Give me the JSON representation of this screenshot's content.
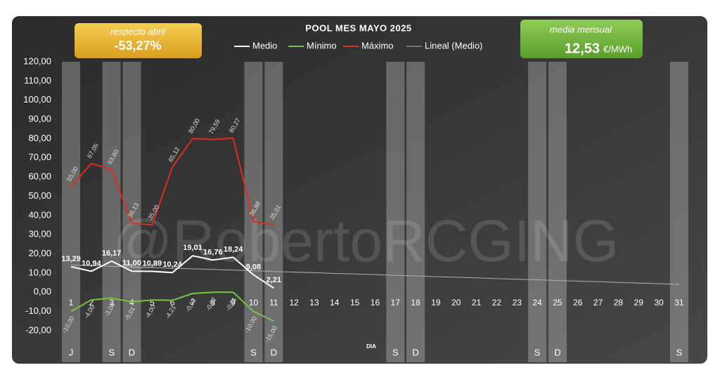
{
  "chart_data": {
    "type": "line",
    "title": "POOL  MES MAYO 2025",
    "x_label": "DIA",
    "watermark": "@RobertoRCGING",
    "annotations": [
      {
        "title": "respecto abril",
        "value": "-53,27%"
      },
      {
        "title": "media mensual",
        "value": "12,53",
        "unit": "€/MWh"
      }
    ],
    "categories": [
      "1",
      "2",
      "3",
      "4",
      "5",
      "6",
      "7",
      "8",
      "9",
      "10",
      "11",
      "12",
      "13",
      "14",
      "15",
      "16",
      "17",
      "18",
      "19",
      "20",
      "21",
      "22",
      "23",
      "24",
      "25",
      "26",
      "27",
      "28",
      "29",
      "30",
      "31"
    ],
    "day_labels": [
      "J",
      null,
      "S",
      "D",
      null,
      null,
      null,
      null,
      null,
      "S",
      "D",
      null,
      null,
      null,
      null,
      null,
      "S",
      "D",
      null,
      null,
      null,
      null,
      null,
      "S",
      "D",
      null,
      null,
      null,
      null,
      null,
      "S"
    ],
    "series": [
      {
        "name": "Medio",
        "color": "#ffffff",
        "values": [
          13.29,
          10.94,
          16.17,
          11.0,
          10.89,
          10.24,
          19.01,
          16.76,
          18.24,
          9.08,
          2.21,
          null,
          null,
          null,
          null,
          null,
          null,
          null,
          null,
          null,
          null,
          null,
          null,
          null,
          null,
          null,
          null,
          null,
          null,
          null,
          null
        ],
        "value_labels": [
          "13,29",
          "10,94",
          "16,17",
          "11,00",
          "10,89",
          "10,24",
          "19,01",
          "16,76",
          "18,24",
          "9,08",
          "2,21",
          null,
          null,
          null,
          null,
          null,
          null,
          null,
          null,
          null,
          null,
          null,
          null,
          null,
          null,
          null,
          null,
          null,
          null,
          null,
          null
        ]
      },
      {
        "name": "Mínimo",
        "color": "#7cc242",
        "values": [
          -10.0,
          -4.0,
          -3.04,
          -5.01,
          -4.0,
          -4.21,
          -0.62,
          -0.02,
          -0.01,
          -10.0,
          -15.0,
          null,
          null,
          null,
          null,
          null,
          null,
          null,
          null,
          null,
          null,
          null,
          null,
          null,
          null,
          null,
          null,
          null,
          null,
          null,
          null
        ],
        "value_labels": [
          "-10,00",
          "-4,00",
          "-3,04",
          "-5,01",
          "-4,00",
          "-4,21",
          "-0,62",
          "-0,02",
          "-0,01",
          "-10,00",
          "-15,00",
          null,
          null,
          null,
          null,
          null,
          null,
          null,
          null,
          null,
          null,
          null,
          null,
          null,
          null,
          null,
          null,
          null,
          null,
          null,
          null
        ]
      },
      {
        "name": "Máximo",
        "color": "#e02b20",
        "values": [
          55.0,
          67.05,
          63.8,
          36.13,
          35.0,
          65.12,
          80.0,
          79.59,
          80.27,
          36.88,
          35.01,
          null,
          null,
          null,
          null,
          null,
          null,
          null,
          null,
          null,
          null,
          null,
          null,
          null,
          null,
          null,
          null,
          null,
          null,
          null,
          null
        ],
        "value_labels": [
          "55,00",
          "67,05",
          "63,80",
          "36,13",
          "35,00",
          "65,12",
          "80,00",
          "79,59",
          "80,27",
          "36,88",
          "35,01",
          null,
          null,
          null,
          null,
          null,
          null,
          null,
          null,
          null,
          null,
          null,
          null,
          null,
          null,
          null,
          null,
          null,
          null,
          null,
          null
        ]
      },
      {
        "name": "Lineal (Medio)",
        "color": "#b0b0b0",
        "values": [
          14.2,
          13.9,
          13.5,
          13.2,
          12.9,
          12.5,
          12.2,
          11.9,
          11.5,
          11.2,
          10.8,
          10.5,
          10.2,
          9.8,
          9.5,
          9.2,
          8.8,
          8.5,
          8.1,
          7.8,
          7.5,
          7.1,
          6.8,
          6.5,
          6.1,
          5.8,
          5.5,
          5.1,
          4.8,
          4.5,
          4.1
        ]
      }
    ],
    "ylim": [
      -20,
      120
    ],
    "yticks": [
      {
        "value": -20,
        "label": "-20,00"
      },
      {
        "value": -10,
        "label": "-10,00"
      },
      {
        "value": 0,
        "label": "0,00"
      },
      {
        "value": 10,
        "label": "10,00"
      },
      {
        "value": 20,
        "label": "20,00"
      },
      {
        "value": 30,
        "label": "30,00"
      },
      {
        "value": 40,
        "label": "40,00"
      },
      {
        "value": 50,
        "label": "50,00"
      },
      {
        "value": 60,
        "label": "60,00"
      },
      {
        "value": 70,
        "label": "70,00"
      },
      {
        "value": 80,
        "label": "80,00"
      },
      {
        "value": 90,
        "label": "90,00"
      },
      {
        "value": 100,
        "label": "100,00"
      },
      {
        "value": 110,
        "label": "110,00"
      },
      {
        "value": 120,
        "label": "120,00"
      }
    ],
    "grid": false,
    "legend": "top"
  }
}
